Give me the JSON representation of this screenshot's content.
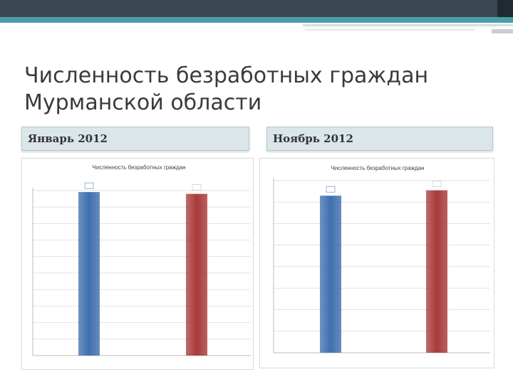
{
  "slide": {
    "title": "Численность безработных граждан Мурманской области",
    "colors": {
      "top_bar": "#3a4854",
      "accent": "#4a9da7",
      "panel": "#dbe6ea"
    }
  },
  "panels": [
    {
      "heading": "Январь 2012"
    },
    {
      "heading": "Ноябрь 2012"
    }
  ],
  "chart_data": [
    {
      "type": "bar",
      "title": "Численность безработных граждан",
      "categories": [
        "",
        ""
      ],
      "values": [
        9910,
        9800
      ],
      "data_labels": [
        "",
        ""
      ],
      "ylim": [
        0,
        10000
      ],
      "yticks": [
        0,
        1000,
        2000,
        3000,
        4000,
        5000,
        6000,
        7000,
        8000,
        9000,
        10000
      ],
      "ytick_labels": [
        "",
        "",
        "",
        "",
        "",
        "",
        "",
        "",
        "",
        "",
        ""
      ],
      "grid": true,
      "colors": [
        "#3f6fae",
        "#a83a3a"
      ]
    },
    {
      "type": "bar",
      "title": "Численность безработных граждан",
      "categories": [
        "",
        ""
      ],
      "values": [
        7300,
        7550
      ],
      "data_labels": [
        "",
        ""
      ],
      "ylim": [
        0,
        8000
      ],
      "yticks": [
        0,
        1000,
        2000,
        3000,
        4000,
        5000,
        6000,
        7000,
        8000
      ],
      "ytick_labels": [
        "",
        "",
        "",
        "",
        "",
        "",
        "",
        "",
        ""
      ],
      "grid": true,
      "colors": [
        "#3f6fae",
        "#a83a3a"
      ]
    }
  ]
}
